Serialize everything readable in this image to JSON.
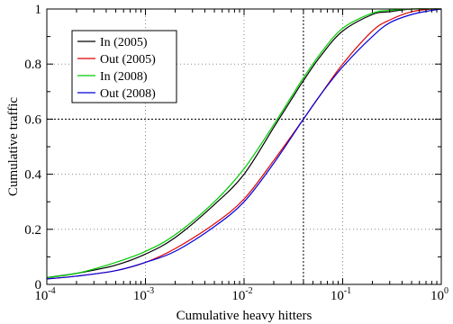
{
  "chart_data": {
    "type": "line",
    "title": "",
    "xlabel": "Cumulative heavy hitters",
    "ylabel": "Cumulative traffic",
    "x_scale": "log",
    "xlim": [
      0.0001,
      1
    ],
    "ylim": [
      0,
      1
    ],
    "x_ticks": [
      {
        "value": 0.0001,
        "base": "10",
        "exp": "-4"
      },
      {
        "value": 0.001,
        "base": "10",
        "exp": "-3"
      },
      {
        "value": 0.01,
        "base": "10",
        "exp": "-2"
      },
      {
        "value": 0.1,
        "base": "10",
        "exp": "-1"
      },
      {
        "value": 1,
        "base": "10",
        "exp": "0"
      }
    ],
    "y_ticks": [
      "0",
      "0.2",
      "0.4",
      "0.6",
      "0.8",
      "1"
    ],
    "grid": "dotted",
    "reference_lines": {
      "x": 0.04,
      "y": 0.6
    },
    "legend_position": "top-left",
    "series": [
      {
        "name": "In (2005)",
        "color": "#000000",
        "points": [
          [
            0.0001,
            0.025
          ],
          [
            0.0002,
            0.04
          ],
          [
            0.0005,
            0.07
          ],
          [
            0.001,
            0.11
          ],
          [
            0.002,
            0.17
          ],
          [
            0.005,
            0.29
          ],
          [
            0.01,
            0.4
          ],
          [
            0.02,
            0.57
          ],
          [
            0.03,
            0.67
          ],
          [
            0.04,
            0.74
          ],
          [
            0.06,
            0.83
          ],
          [
            0.1,
            0.92
          ],
          [
            0.2,
            0.98
          ],
          [
            0.3,
            0.99
          ],
          [
            0.5,
            1.0
          ],
          [
            1,
            1.0
          ]
        ]
      },
      {
        "name": "Out (2005)",
        "color": "#e00000",
        "points": [
          [
            0.0001,
            0.02
          ],
          [
            0.0002,
            0.03
          ],
          [
            0.0005,
            0.05
          ],
          [
            0.001,
            0.08
          ],
          [
            0.002,
            0.13
          ],
          [
            0.005,
            0.22
          ],
          [
            0.01,
            0.31
          ],
          [
            0.02,
            0.45
          ],
          [
            0.04,
            0.6
          ],
          [
            0.06,
            0.69
          ],
          [
            0.1,
            0.8
          ],
          [
            0.2,
            0.92
          ],
          [
            0.3,
            0.96
          ],
          [
            0.5,
            0.99
          ],
          [
            0.8,
            1.0
          ],
          [
            1,
            1.0
          ]
        ]
      },
      {
        "name": "In (2008)",
        "color": "#00cc00",
        "points": [
          [
            0.0001,
            0.025
          ],
          [
            0.0002,
            0.04
          ],
          [
            0.0005,
            0.08
          ],
          [
            0.001,
            0.12
          ],
          [
            0.002,
            0.18
          ],
          [
            0.005,
            0.3
          ],
          [
            0.01,
            0.42
          ],
          [
            0.02,
            0.58
          ],
          [
            0.03,
            0.68
          ],
          [
            0.04,
            0.75
          ],
          [
            0.06,
            0.84
          ],
          [
            0.1,
            0.93
          ],
          [
            0.2,
            0.985
          ],
          [
            0.3,
            0.995
          ],
          [
            0.5,
            1.0
          ],
          [
            1,
            1.0
          ]
        ]
      },
      {
        "name": "Out (2008)",
        "color": "#0000dd",
        "points": [
          [
            0.0001,
            0.02
          ],
          [
            0.0002,
            0.03
          ],
          [
            0.0005,
            0.05
          ],
          [
            0.001,
            0.08
          ],
          [
            0.002,
            0.12
          ],
          [
            0.005,
            0.21
          ],
          [
            0.01,
            0.3
          ],
          [
            0.02,
            0.44
          ],
          [
            0.04,
            0.6
          ],
          [
            0.06,
            0.69
          ],
          [
            0.1,
            0.79
          ],
          [
            0.2,
            0.9
          ],
          [
            0.3,
            0.95
          ],
          [
            0.5,
            0.98
          ],
          [
            0.8,
            0.995
          ],
          [
            1,
            1.0
          ]
        ]
      }
    ]
  }
}
